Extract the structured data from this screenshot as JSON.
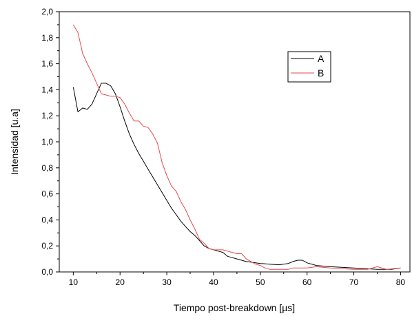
{
  "chart_data": {
    "type": "line",
    "xlabel": "Tiempo post-breakdown [µs]",
    "ylabel": "Intensidad [u.a]",
    "xlim": [
      7,
      82
    ],
    "ylim": [
      0,
      2
    ],
    "xticks": [
      10,
      20,
      30,
      40,
      50,
      60,
      70,
      80
    ],
    "xtick_labels": [
      "10",
      "20",
      "30",
      "40",
      "50",
      "60",
      "70",
      "80"
    ],
    "yticks": [
      0,
      0.2,
      0.4,
      0.6,
      0.8,
      1.0,
      1.2,
      1.4,
      1.6,
      1.8,
      2.0
    ],
    "ytick_labels": [
      "0,0",
      "0,2",
      "0,4",
      "0,6",
      "0,8",
      "1,0",
      "1,2",
      "1,4",
      "1,6",
      "1,8",
      "2,0"
    ],
    "grid": false,
    "legend_position": "top-right",
    "series": [
      {
        "name": "A",
        "color": "#000000",
        "x": [
          10,
          11,
          12,
          13,
          14,
          15,
          16,
          17,
          18,
          19,
          20,
          21,
          22,
          23,
          24,
          25,
          26,
          27,
          28,
          29,
          30,
          31,
          32,
          33,
          34,
          35,
          36,
          37,
          38,
          39,
          40,
          41,
          42,
          43,
          44,
          45,
          46,
          47,
          48,
          49,
          50,
          52,
          54,
          56,
          57,
          58,
          59,
          60,
          62,
          65,
          70,
          75,
          78,
          80
        ],
        "y": [
          1.42,
          1.23,
          1.26,
          1.25,
          1.29,
          1.37,
          1.45,
          1.45,
          1.43,
          1.37,
          1.27,
          1.16,
          1.06,
          0.98,
          0.91,
          0.85,
          0.79,
          0.73,
          0.67,
          0.61,
          0.55,
          0.49,
          0.44,
          0.39,
          0.35,
          0.31,
          0.28,
          0.24,
          0.2,
          0.18,
          0.17,
          0.16,
          0.15,
          0.12,
          0.11,
          0.1,
          0.09,
          0.08,
          0.075,
          0.07,
          0.065,
          0.06,
          0.055,
          0.065,
          0.08,
          0.09,
          0.09,
          0.07,
          0.05,
          0.04,
          0.03,
          0.02,
          0.02,
          0.03
        ]
      },
      {
        "name": "B",
        "color": "#e8474a",
        "x": [
          10,
          11,
          12,
          13,
          14,
          15,
          16,
          17,
          18,
          19,
          20,
          21,
          22,
          23,
          24,
          25,
          26,
          27,
          28,
          29,
          30,
          31,
          32,
          33,
          34,
          35,
          36,
          37,
          38,
          39,
          40,
          41,
          42,
          43,
          44,
          45,
          46,
          47,
          48,
          49,
          50,
          51,
          52,
          53,
          54,
          55,
          56,
          57,
          58,
          60,
          62,
          65,
          70,
          73,
          75,
          77,
          80
        ],
        "y": [
          1.9,
          1.84,
          1.68,
          1.6,
          1.53,
          1.45,
          1.37,
          1.36,
          1.35,
          1.35,
          1.34,
          1.29,
          1.22,
          1.16,
          1.16,
          1.12,
          1.11,
          1.06,
          0.99,
          0.84,
          0.74,
          0.66,
          0.62,
          0.54,
          0.48,
          0.4,
          0.33,
          0.25,
          0.22,
          0.18,
          0.17,
          0.17,
          0.17,
          0.16,
          0.15,
          0.14,
          0.14,
          0.1,
          0.08,
          0.06,
          0.05,
          0.03,
          0.02,
          0.02,
          0.02,
          0.02,
          0.02,
          0.03,
          0.03,
          0.03,
          0.04,
          0.03,
          0.02,
          0.02,
          0.04,
          0.02,
          0.03
        ]
      }
    ]
  }
}
